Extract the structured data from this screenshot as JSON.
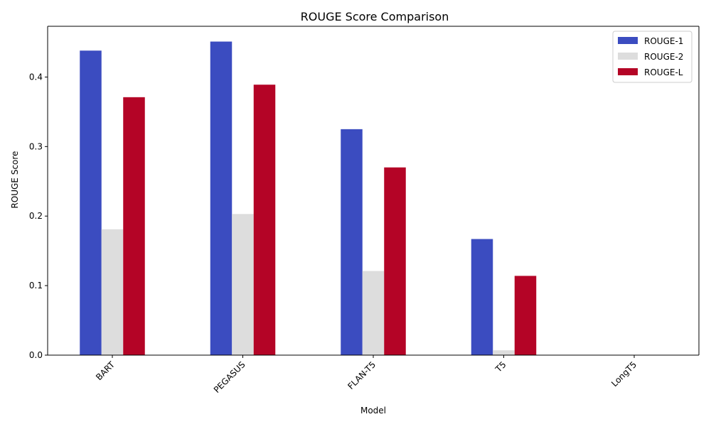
{
  "chart_data": {
    "type": "bar",
    "title": "ROUGE Score Comparison",
    "xlabel": "Model",
    "ylabel": "ROUGE Score",
    "categories": [
      "BART",
      "PEGASUS",
      "FLAN-T5",
      "T5",
      "LongT5"
    ],
    "series": [
      {
        "name": "ROUGE-1",
        "color": "#3b4cc0",
        "values": [
          0.438,
          0.451,
          0.325,
          0.167,
          0.0
        ]
      },
      {
        "name": "ROUGE-2",
        "color": "#dddddd",
        "values": [
          0.181,
          0.203,
          0.121,
          0.007,
          0.0
        ]
      },
      {
        "name": "ROUGE-L",
        "color": "#b40426",
        "values": [
          0.371,
          0.389,
          0.27,
          0.114,
          0.0
        ]
      }
    ],
    "ylim": [
      0,
      0.473
    ],
    "yticks": [
      "0.0",
      "0.1",
      "0.2",
      "0.3",
      "0.4"
    ],
    "xtick_rotation_deg": 45,
    "legend_position": "top-right",
    "grid": false
  }
}
